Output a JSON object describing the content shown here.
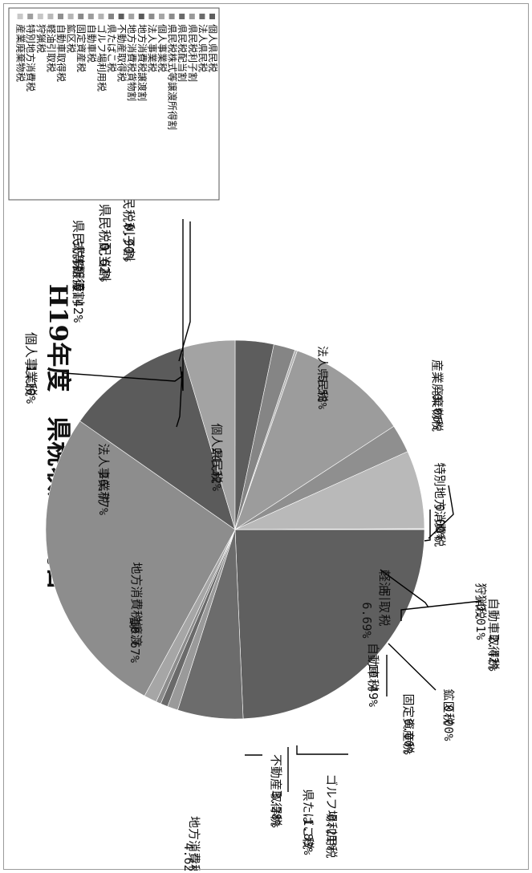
{
  "title": "H19年度　県税収入額割合",
  "chart_data": {
    "type": "pie",
    "title": "H19年度　県税収入額割合",
    "legend_position": "right",
    "slices": [
      {
        "name": "個人県民税",
        "value": 24.32,
        "pct": "24.32%",
        "color": "#5f5f5f"
      },
      {
        "name": "法人県民税",
        "value": 5.58,
        "pct": "5.58%",
        "color": "#6c6c6c"
      },
      {
        "name": "県民税利子割",
        "value": 0.9,
        "pct": "0.90%",
        "color": "#9a9a9a"
      },
      {
        "name": "県民税配当割",
        "value": 0.62,
        "pct": "0.62%",
        "color": "#6a6a6a"
      },
      {
        "name": "県民税株式等譲渡所得割",
        "value": 0.42,
        "pct": "0.42%",
        "color": "#8c8c8c"
      },
      {
        "name": "個人事業税",
        "value": 1.1,
        "pct": "1.10%",
        "color": "#a6a6a6"
      },
      {
        "name": "法人事業税",
        "value": 26.77,
        "pct": "26.77%",
        "color": "#8d8d8d"
      },
      {
        "name": "地方消費税譲渡割",
        "value": 10.67,
        "pct": "10.67%",
        "color": "#5b5b5b"
      },
      {
        "name": "地方消費税貨物割",
        "value": 4.62,
        "pct": "4.62%",
        "color": "#a3a3a3"
      },
      {
        "name": "不動産取得税",
        "value": 3.28,
        "pct": "3.28%",
        "color": "#5d5d5d"
      },
      {
        "name": "県たばこ税",
        "value": 1.83,
        "pct": "1.83%",
        "color": "#858585"
      },
      {
        "name": "ゴルフ場利用税",
        "value": 0.21,
        "pct": "0.21%",
        "color": "#b3b3b3"
      },
      {
        "name": "自動車税",
        "value": 10.49,
        "pct": "10.49%",
        "color": "#9c9c9c"
      },
      {
        "name": "固定資産税",
        "value": 0.0,
        "pct": "0.00%",
        "color": "#8a8a8a"
      },
      {
        "name": "鉱区税",
        "value": 0.0,
        "pct": "0.00%",
        "color": "#b5b5b5"
      },
      {
        "name": "自動車取得税",
        "value": 2.42,
        "pct": "2.42%",
        "color": "#8f8f8f"
      },
      {
        "name": "軽油引取税",
        "value": 6.69,
        "pct": "6.69%",
        "color": "#b9b9b9"
      },
      {
        "name": "狩猟税",
        "value": 0.01,
        "pct": "0.01%",
        "color": "#c6c6c6"
      },
      {
        "name": "特別地方消費税",
        "value": 0.0,
        "pct": "0.00%",
        "color": "#9e9e9e"
      },
      {
        "name": "産業廃棄物税",
        "value": 0.06,
        "pct": "0.06%",
        "color": "#c8c8c8"
      }
    ]
  }
}
